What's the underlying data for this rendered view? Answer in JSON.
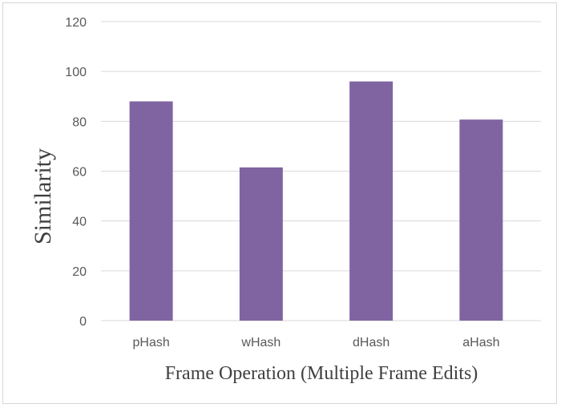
{
  "chart_data": {
    "type": "bar",
    "title": "",
    "xlabel": "Frame Operation (Multiple Frame Edits)",
    "ylabel": "Similarity",
    "categories": [
      "pHash",
      "wHash",
      "dHash",
      "aHash"
    ],
    "values": [
      88,
      61.5,
      96,
      80.7
    ],
    "ylim": [
      0,
      120
    ],
    "yticks": [
      0,
      20,
      40,
      60,
      80,
      100,
      120
    ],
    "grid": true,
    "legend": "none",
    "bar_color": "#8064a2",
    "grid_color": "#d9d9d9"
  }
}
